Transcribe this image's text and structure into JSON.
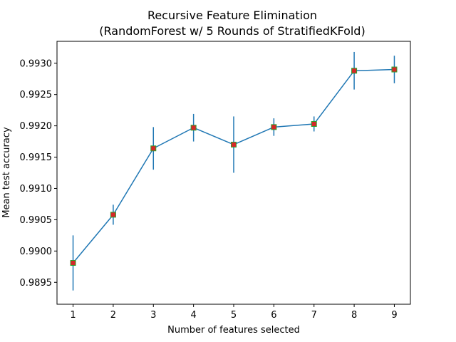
{
  "chart_data": {
    "type": "line",
    "title_line1": "Recursive Feature Elimination",
    "title_line2": "(RandomForest w/ 5 Rounds of StratifiedKFold)",
    "xlabel": "Number of features selected",
    "ylabel": "Mean test accuracy",
    "xlim": [
      0.6,
      9.4
    ],
    "ylim": [
      0.98915,
      0.99335
    ],
    "x_ticks": [
      1,
      2,
      3,
      4,
      5,
      6,
      7,
      8,
      9
    ],
    "y_ticks": [
      "0.9895",
      "0.9900",
      "0.9905",
      "0.9910",
      "0.9915",
      "0.9920",
      "0.9925",
      "0.9930"
    ],
    "series": [
      {
        "x": [
          1,
          2,
          3,
          4,
          5,
          6,
          7,
          8,
          9
        ],
        "values": [
          0.98981,
          0.99058,
          0.99164,
          0.99197,
          0.9917,
          0.99198,
          0.99203,
          0.99288,
          0.9929
        ],
        "error": [
          0.00044,
          0.00016,
          0.00034,
          0.00022,
          0.00045,
          0.00014,
          0.00012,
          0.0003,
          0.00022
        ],
        "line_color": "#1f77b4",
        "marker_face": "#d62728",
        "marker_edge": "#2ca02c"
      }
    ],
    "grid": false,
    "legend": "none"
  }
}
